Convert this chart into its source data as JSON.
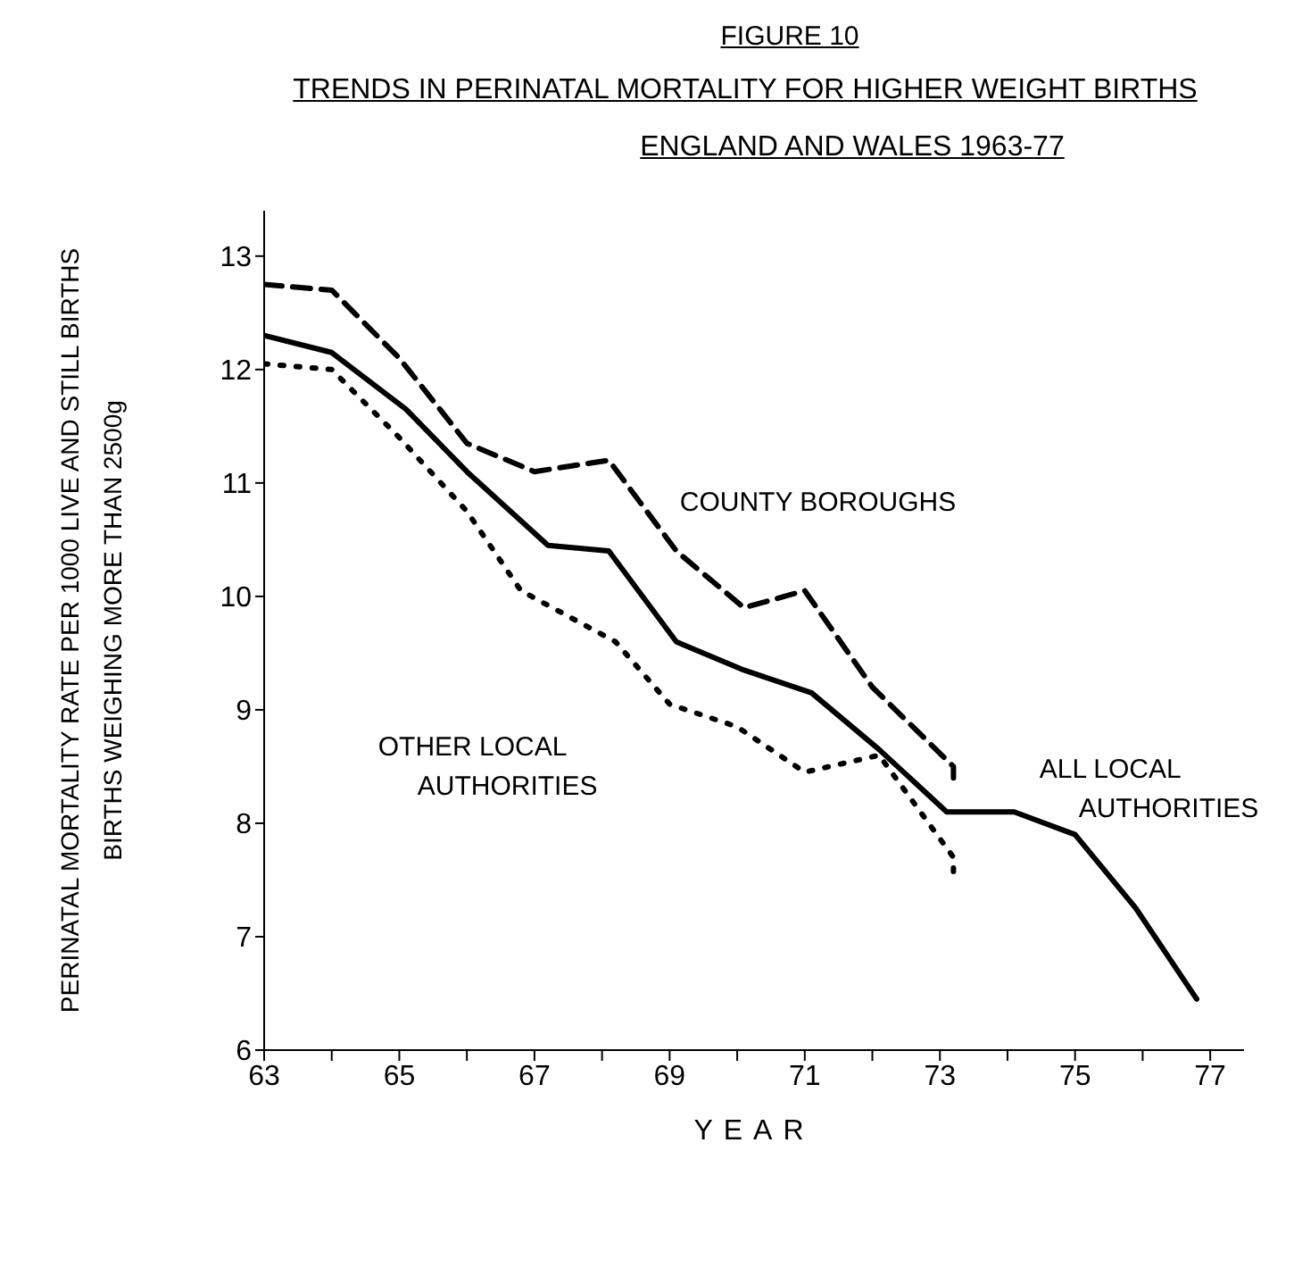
{
  "chart_data": {
    "type": "line",
    "title": "TRENDS IN PERINATAL MORTALITY FOR HIGHER WEIGHT BIRTHS",
    "subtitle": "ENGLAND AND WALES 1963-77",
    "annotations": [
      "FIGURE 10"
    ],
    "xlabel": "YEAR",
    "ylabel": "PERINATAL MORTALITY RATE PER 1000 LIVE AND STILL BIRTHS\nBIRTHS WEIGHING MORE THAN 2500g",
    "xlim": [
      63,
      77.5
    ],
    "xticks": [
      63,
      {
        "value": 64,
        "label": null
      },
      65,
      {
        "value": 66,
        "label": null
      },
      67,
      {
        "value": 68,
        "label": null
      },
      69,
      {
        "value": 70,
        "label": null
      },
      71,
      {
        "value": 72,
        "label": null
      },
      73,
      {
        "value": 74,
        "label": null
      },
      75,
      {
        "value": 76,
        "label": null
      },
      77
    ],
    "ylim": [
      6,
      13.4
    ],
    "yticks": [
      6,
      7,
      8,
      9,
      10,
      11,
      12,
      13
    ],
    "grid": false,
    "legend": false,
    "marker": "none",
    "series": [
      {
        "name": "COUNTY BOROUGHS",
        "color": "#000000",
        "line_style": "dashed",
        "x": [
          63,
          64,
          65,
          66,
          67,
          68.1,
          69.1,
          70.1,
          71,
          72,
          73.2,
          73.2
        ],
        "values": [
          12.75,
          12.7,
          12.1,
          11.35,
          11.1,
          11.2,
          10.4,
          9.9,
          10.05,
          9.2,
          8.5,
          8.4
        ]
      },
      {
        "name": "ALL LOCAL AUTHORITIES",
        "color": "#000000",
        "line_style": "solid",
        "x": [
          63,
          64,
          65.1,
          66,
          67.2,
          68.1,
          69.1,
          70.1,
          71.1,
          72.1,
          73.1,
          74.1,
          75,
          75.9,
          76.8
        ],
        "values": [
          12.3,
          12.15,
          11.65,
          11.1,
          10.45,
          10.4,
          9.6,
          9.35,
          9.15,
          8.65,
          8.1,
          8.1,
          7.9,
          7.25,
          6.45
        ]
      },
      {
        "name": "OTHER LOCAL AUTHORITIES",
        "color": "#000000",
        "line_style": "dotted",
        "x": [
          63,
          64,
          65,
          66,
          66.8,
          68.2,
          69,
          70,
          71,
          72.1,
          73.2,
          73.2
        ],
        "values": [
          12.05,
          12.0,
          11.4,
          10.75,
          10.05,
          9.6,
          9.05,
          8.85,
          8.45,
          8.6,
          7.7,
          7.55
        ]
      }
    ]
  }
}
